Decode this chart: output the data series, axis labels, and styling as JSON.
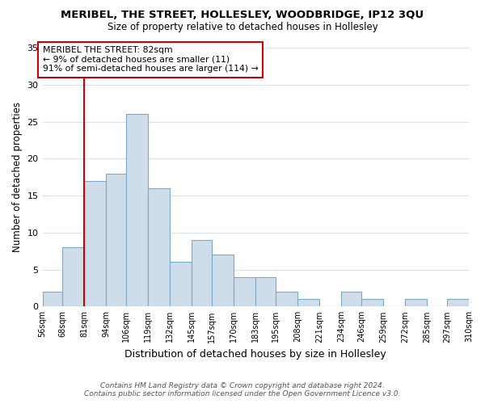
{
  "title": "MERIBEL, THE STREET, HOLLESLEY, WOODBRIDGE, IP12 3QU",
  "subtitle": "Size of property relative to detached houses in Hollesley",
  "xlabel": "Distribution of detached houses by size in Hollesley",
  "ylabel": "Number of detached properties",
  "bar_color": "#cfdcea",
  "bar_edge_color": "#7aaac8",
  "bins": [
    56,
    68,
    81,
    94,
    106,
    119,
    132,
    145,
    157,
    170,
    183,
    195,
    208,
    221,
    234,
    246,
    259,
    272,
    285,
    297,
    310
  ],
  "counts": [
    2,
    8,
    17,
    18,
    26,
    16,
    6,
    9,
    7,
    4,
    4,
    2,
    1,
    0,
    2,
    1,
    0,
    1,
    0,
    1
  ],
  "tick_labels": [
    "56sqm",
    "68sqm",
    "81sqm",
    "94sqm",
    "106sqm",
    "119sqm",
    "132sqm",
    "145sqm",
    "157sqm",
    "170sqm",
    "183sqm",
    "195sqm",
    "208sqm",
    "221sqm",
    "234sqm",
    "246sqm",
    "259sqm",
    "272sqm",
    "285sqm",
    "297sqm",
    "310sqm"
  ],
  "ylim": [
    0,
    35
  ],
  "yticks": [
    0,
    5,
    10,
    15,
    20,
    25,
    30,
    35
  ],
  "vline_x": 81,
  "vline_color": "#cc0000",
  "annotation_title": "MERIBEL THE STREET: 82sqm",
  "annotation_line1": "← 9% of detached houses are smaller (11)",
  "annotation_line2": "91% of semi-detached houses are larger (114) →",
  "annotation_box_edge": "#cc0000",
  "footer_line1": "Contains HM Land Registry data © Crown copyright and database right 2024.",
  "footer_line2": "Contains public sector information licensed under the Open Government Licence v3.0.",
  "background_color": "#ffffff",
  "grid_color": "#d8e4f0"
}
